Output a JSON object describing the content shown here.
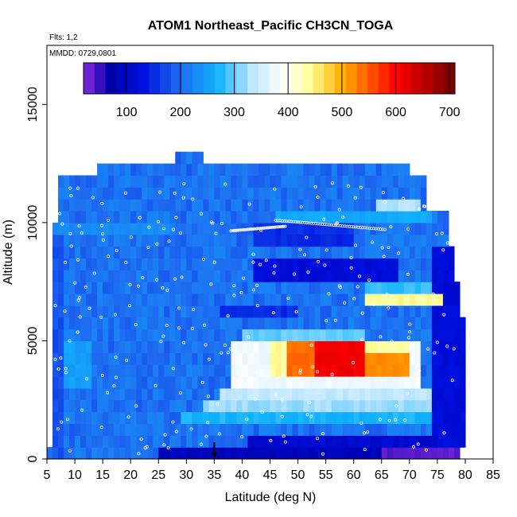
{
  "chart_data": {
    "type": "heatmap",
    "title": "ATOM1 Northeast_Pacific CH3CN_TOGA",
    "annotations": [
      "Flts: 1,2",
      "MMDD: 0729,0801"
    ],
    "xlabel": "Latitude (deg N)",
    "ylabel": "Altitude (m)",
    "xlim": [
      5,
      85
    ],
    "ylim": [
      0,
      17500
    ],
    "x_ticks": [
      5,
      10,
      15,
      20,
      25,
      30,
      35,
      40,
      45,
      50,
      55,
      60,
      65,
      70,
      75,
      80,
      85
    ],
    "y_ticks": [
      0,
      5000,
      10000,
      15000
    ],
    "colorbar": {
      "min": 20,
      "max": 710,
      "ticks": [
        100,
        200,
        300,
        400,
        500,
        600,
        700
      ],
      "stops": [
        [
          20,
          "#8a2be2"
        ],
        [
          70,
          "#0000a8"
        ],
        [
          130,
          "#0010e0"
        ],
        [
          200,
          "#1e6cf0"
        ],
        [
          270,
          "#10b4ff"
        ],
        [
          330,
          "#b8e4ff"
        ],
        [
          390,
          "#ffffff"
        ],
        [
          440,
          "#ffff9a"
        ],
        [
          500,
          "#ffb000"
        ],
        [
          600,
          "#ff0000"
        ],
        [
          710,
          "#700000"
        ]
      ]
    },
    "cell_size": {
      "lat": 1,
      "alt": 500
    },
    "background_value": 205,
    "footprint": [
      [
        0,
        5,
        79
      ],
      [
        500,
        6,
        80
      ],
      [
        1000,
        6,
        80
      ],
      [
        1500,
        6,
        80
      ],
      [
        2000,
        6,
        80
      ],
      [
        2500,
        6,
        80
      ],
      [
        3000,
        6,
        80
      ],
      [
        3500,
        6,
        80
      ],
      [
        4000,
        6,
        80
      ],
      [
        4500,
        6,
        80
      ],
      [
        5000,
        6,
        80
      ],
      [
        5500,
        6,
        80
      ],
      [
        6000,
        6,
        79
      ],
      [
        6500,
        6,
        79
      ],
      [
        7000,
        6,
        79
      ],
      [
        7500,
        6,
        78
      ],
      [
        8000,
        6,
        78
      ],
      [
        8500,
        6,
        78
      ],
      [
        9000,
        6,
        77
      ],
      [
        9500,
        6,
        77
      ],
      [
        10000,
        7,
        77
      ],
      [
        10500,
        7,
        73
      ],
      [
        11000,
        7,
        73
      ],
      [
        11500,
        7,
        73
      ],
      [
        12000,
        14,
        70
      ],
      [
        12500,
        28,
        33
      ]
    ],
    "patches": [
      {
        "lat": [
          41,
          75
        ],
        "alt": [
          0,
          1000
        ],
        "value": 110
      },
      {
        "lat": [
          25,
          75
        ],
        "alt": [
          0,
          500
        ],
        "value": 90
      },
      {
        "lat": [
          65,
          79
        ],
        "alt": [
          0,
          500
        ],
        "value": 40
      },
      {
        "lat": [
          74,
          80
        ],
        "alt": [
          500,
          9000
        ],
        "value": 120
      },
      {
        "lat": [
          29,
          74
        ],
        "alt": [
          1500,
          2000
        ],
        "value": 270
      },
      {
        "lat": [
          33,
          74
        ],
        "alt": [
          2000,
          2500
        ],
        "value": 320
      },
      {
        "lat": [
          36,
          74
        ],
        "alt": [
          2500,
          3000
        ],
        "value": 340
      },
      {
        "lat": [
          38,
          72
        ],
        "alt": [
          3000,
          5000
        ],
        "value": 380
      },
      {
        "lat": [
          45,
          70
        ],
        "alt": [
          3500,
          5000
        ],
        "value": 440
      },
      {
        "lat": [
          48,
          62
        ],
        "alt": [
          3500,
          5000
        ],
        "value": 540
      },
      {
        "lat": [
          53,
          62
        ],
        "alt": [
          3500,
          5000
        ],
        "value": 610
      },
      {
        "lat": [
          62,
          70
        ],
        "alt": [
          3500,
          4500
        ],
        "value": 520
      },
      {
        "lat": [
          40,
          62
        ],
        "alt": [
          5000,
          5500
        ],
        "value": 300
      },
      {
        "lat": [
          62,
          76
        ],
        "alt": [
          6500,
          7000
        ],
        "value": 440
      },
      {
        "lat": [
          68,
          74
        ],
        "alt": [
          7000,
          7500
        ],
        "value": 420
      },
      {
        "lat": [
          62,
          74
        ],
        "alt": [
          7000,
          7500
        ],
        "value": 280
      },
      {
        "lat": [
          42,
          68
        ],
        "alt": [
          7500,
          8500
        ],
        "value": 120
      },
      {
        "lat": [
          42,
          60
        ],
        "alt": [
          9000,
          10000
        ],
        "value": 150
      },
      {
        "lat": [
          46,
          74
        ],
        "alt": [
          10000,
          10500
        ],
        "value": 260
      },
      {
        "lat": [
          64,
          72
        ],
        "alt": [
          10500,
          11000
        ],
        "value": 330
      },
      {
        "lat": [
          36,
          50
        ],
        "alt": [
          6000,
          6500
        ],
        "value": 150
      },
      {
        "lat": [
          6,
          13
        ],
        "alt": [
          3000,
          5000
        ],
        "value": 250
      },
      {
        "lat": [
          6,
          28
        ],
        "alt": [
          9500,
          10000
        ],
        "value": 230
      },
      {
        "lat": [
          6,
          8
        ],
        "alt": [
          0,
          9500
        ],
        "value": 180
      }
    ],
    "arrow_latitude": 35
  }
}
